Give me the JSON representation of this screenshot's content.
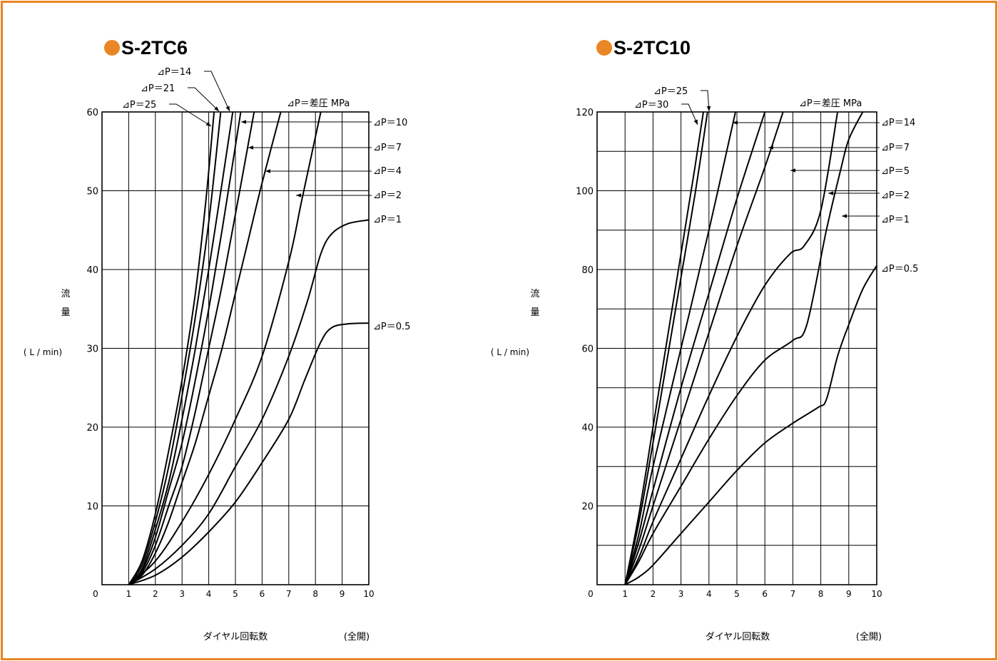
{
  "accent_color": "#ea8623",
  "chart_data": [
    {
      "type": "line",
      "title": "S-2TC6",
      "xlabel": "ダイヤル回転数",
      "xlabel_note": "(全開)",
      "ylabel": [
        "流",
        "量"
      ],
      "yunit": "( L / min)",
      "xlim": [
        0,
        10
      ],
      "ylim": [
        0,
        60
      ],
      "x_ticks": [
        0,
        1,
        2,
        3,
        4,
        5,
        6,
        7,
        8,
        9,
        10
      ],
      "y_ticks": [
        10,
        20,
        30,
        40,
        50,
        60
      ],
      "grid": true,
      "header_label": "⊿P＝差圧 MPa",
      "series": [
        {
          "name": "⊿P＝25",
          "points": [
            [
              1,
              0
            ],
            [
              1.5,
              3
            ],
            [
              2,
              9
            ],
            [
              2.5,
              17
            ],
            [
              3,
              26
            ],
            [
              3.5,
              37
            ],
            [
              3.9,
              49
            ],
            [
              4.2,
              60
            ]
          ]
        },
        {
          "name": "⊿P＝21",
          "points": [
            [
              1,
              0
            ],
            [
              1.5,
              2.5
            ],
            [
              2,
              8
            ],
            [
              2.5,
              15
            ],
            [
              3,
              24
            ],
            [
              3.5,
              34
            ],
            [
              4,
              46
            ],
            [
              4.45,
              60
            ]
          ]
        },
        {
          "name": "⊿P＝14",
          "points": [
            [
              1,
              0
            ],
            [
              1.5,
              2
            ],
            [
              2,
              7
            ],
            [
              2.5,
              13
            ],
            [
              3,
              21
            ],
            [
              3.5,
              30
            ],
            [
              4,
              40
            ],
            [
              4.5,
              51
            ],
            [
              4.9,
              60
            ]
          ]
        },
        {
          "name": "⊿P＝10",
          "points": [
            [
              1,
              0
            ],
            [
              1.5,
              1.8
            ],
            [
              2,
              6
            ],
            [
              2.5,
              12
            ],
            [
              3,
              18
            ],
            [
              3.5,
              26
            ],
            [
              4,
              35
            ],
            [
              4.5,
              45
            ],
            [
              5.2,
              60
            ]
          ]
        },
        {
          "name": "⊿P＝7",
          "points": [
            [
              1,
              0
            ],
            [
              1.5,
              1.5
            ],
            [
              2,
              5
            ],
            [
              2.5,
              10
            ],
            [
              3,
              15
            ],
            [
              3.5,
              22
            ],
            [
              4,
              30
            ],
            [
              4.5,
              38
            ],
            [
              5,
              47
            ],
            [
              5.7,
              60
            ]
          ]
        },
        {
          "name": "⊿P＝4",
          "points": [
            [
              1,
              0
            ],
            [
              1.5,
              1.2
            ],
            [
              2,
              4
            ],
            [
              2.5,
              8
            ],
            [
              3,
              13
            ],
            [
              3.5,
              18
            ],
            [
              4,
              24
            ],
            [
              4.5,
              30
            ],
            [
              5,
              37
            ],
            [
              5.5,
              44
            ],
            [
              6,
              51
            ],
            [
              6.7,
              60
            ]
          ]
        },
        {
          "name": "⊿P＝2",
          "points": [
            [
              1,
              0
            ],
            [
              2,
              3
            ],
            [
              3,
              8
            ],
            [
              4,
              14
            ],
            [
              5,
              21
            ],
            [
              6,
              29
            ],
            [
              7,
              41
            ],
            [
              7.5,
              49
            ],
            [
              8.2,
              60
            ]
          ]
        },
        {
          "name": "⊿P＝1",
          "points": [
            [
              1,
              0
            ],
            [
              2,
              2
            ],
            [
              3,
              5
            ],
            [
              4,
              9
            ],
            [
              5,
              15
            ],
            [
              6,
              21
            ],
            [
              7,
              29
            ],
            [
              7.7,
              36
            ],
            [
              8.2,
              42
            ],
            [
              8.6,
              44.5
            ],
            [
              9.2,
              45.8
            ],
            [
              10,
              46.3
            ]
          ]
        },
        {
          "name": "⊿P＝0.5",
          "points": [
            [
              1,
              0
            ],
            [
              2,
              1.2
            ],
            [
              3,
              3.5
            ],
            [
              4,
              6.7
            ],
            [
              5,
              10.5
            ],
            [
              6,
              15.5
            ],
            [
              7,
              21
            ],
            [
              7.6,
              26
            ],
            [
              8.2,
              30.8
            ],
            [
              8.6,
              32.6
            ],
            [
              9.2,
              33.1
            ],
            [
              10,
              33.2
            ]
          ]
        }
      ]
    },
    {
      "type": "line",
      "title": "S-2TC10",
      "xlabel": "ダイヤル回転数",
      "xlabel_note": "(全開)",
      "ylabel": [
        "流",
        "量"
      ],
      "yunit": "( L / min)",
      "xlim": [
        0,
        10
      ],
      "ylim": [
        0,
        120
      ],
      "x_ticks": [
        0,
        1,
        2,
        3,
        4,
        5,
        6,
        7,
        8,
        9,
        10
      ],
      "y_ticks": [
        20,
        40,
        60,
        80,
        100,
        120
      ],
      "grid": true,
      "header_label": "⊿P＝差圧 MPa",
      "series": [
        {
          "name": "⊿P＝30",
          "points": [
            [
              1,
              0
            ],
            [
              1.5,
              18
            ],
            [
              2,
              40
            ],
            [
              2.5,
              62
            ],
            [
              3,
              84
            ],
            [
              3.5,
              106
            ],
            [
              3.8,
              120
            ]
          ]
        },
        {
          "name": "⊿P＝25",
          "points": [
            [
              1,
              0
            ],
            [
              1.5,
              16
            ],
            [
              2,
              36
            ],
            [
              2.5,
              57
            ],
            [
              3,
              78
            ],
            [
              3.5,
              99
            ],
            [
              3.95,
              120
            ]
          ]
        },
        {
          "name": "⊿P＝14",
          "points": [
            [
              1,
              0
            ],
            [
              1.5,
              13
            ],
            [
              2,
              30
            ],
            [
              3,
              60
            ],
            [
              4,
              90
            ],
            [
              4.95,
              120
            ]
          ]
        },
        {
          "name": "⊿P＝7",
          "points": [
            [
              1,
              0
            ],
            [
              1.5,
              11
            ],
            [
              2,
              24
            ],
            [
              3,
              50
            ],
            [
              4,
              74
            ],
            [
              5,
              98
            ],
            [
              6,
              120
            ]
          ]
        },
        {
          "name": "⊿P＝5",
          "points": [
            [
              1,
              0
            ],
            [
              1.5,
              9
            ],
            [
              2,
              20
            ],
            [
              3,
              42
            ],
            [
              4,
              64
            ],
            [
              5,
              86
            ],
            [
              6,
              106
            ],
            [
              6.65,
              120
            ]
          ]
        },
        {
          "name": "⊿P＝2",
          "points": [
            [
              1,
              0
            ],
            [
              1.5,
              7
            ],
            [
              2,
              16
            ],
            [
              3,
              32
            ],
            [
              4,
              48
            ],
            [
              5,
              63
            ],
            [
              6,
              76
            ],
            [
              6.9,
              84
            ],
            [
              7.4,
              86
            ],
            [
              8,
              95
            ],
            [
              8.6,
              120
            ]
          ]
        },
        {
          "name": "⊿P＝1",
          "points": [
            [
              1,
              0
            ],
            [
              1.5,
              6
            ],
            [
              2,
              13
            ],
            [
              3,
              25
            ],
            [
              4,
              37
            ],
            [
              5,
              48
            ],
            [
              6,
              57
            ],
            [
              7,
              62
            ],
            [
              7.5,
              66
            ],
            [
              8.2,
              90
            ],
            [
              8.7,
              105
            ],
            [
              9,
              113
            ],
            [
              9.5,
              120
            ]
          ]
        },
        {
          "name": "⊿P＝0.5",
          "points": [
            [
              1,
              0
            ],
            [
              1.5,
              2
            ],
            [
              2,
              5
            ],
            [
              3,
              13
            ],
            [
              4,
              21
            ],
            [
              5,
              29
            ],
            [
              6,
              36
            ],
            [
              7,
              41
            ],
            [
              7.9,
              45
            ],
            [
              8.2,
              47
            ],
            [
              8.6,
              58
            ],
            [
              9,
              66
            ],
            [
              9.5,
              75
            ],
            [
              10,
              81
            ]
          ]
        }
      ]
    }
  ]
}
